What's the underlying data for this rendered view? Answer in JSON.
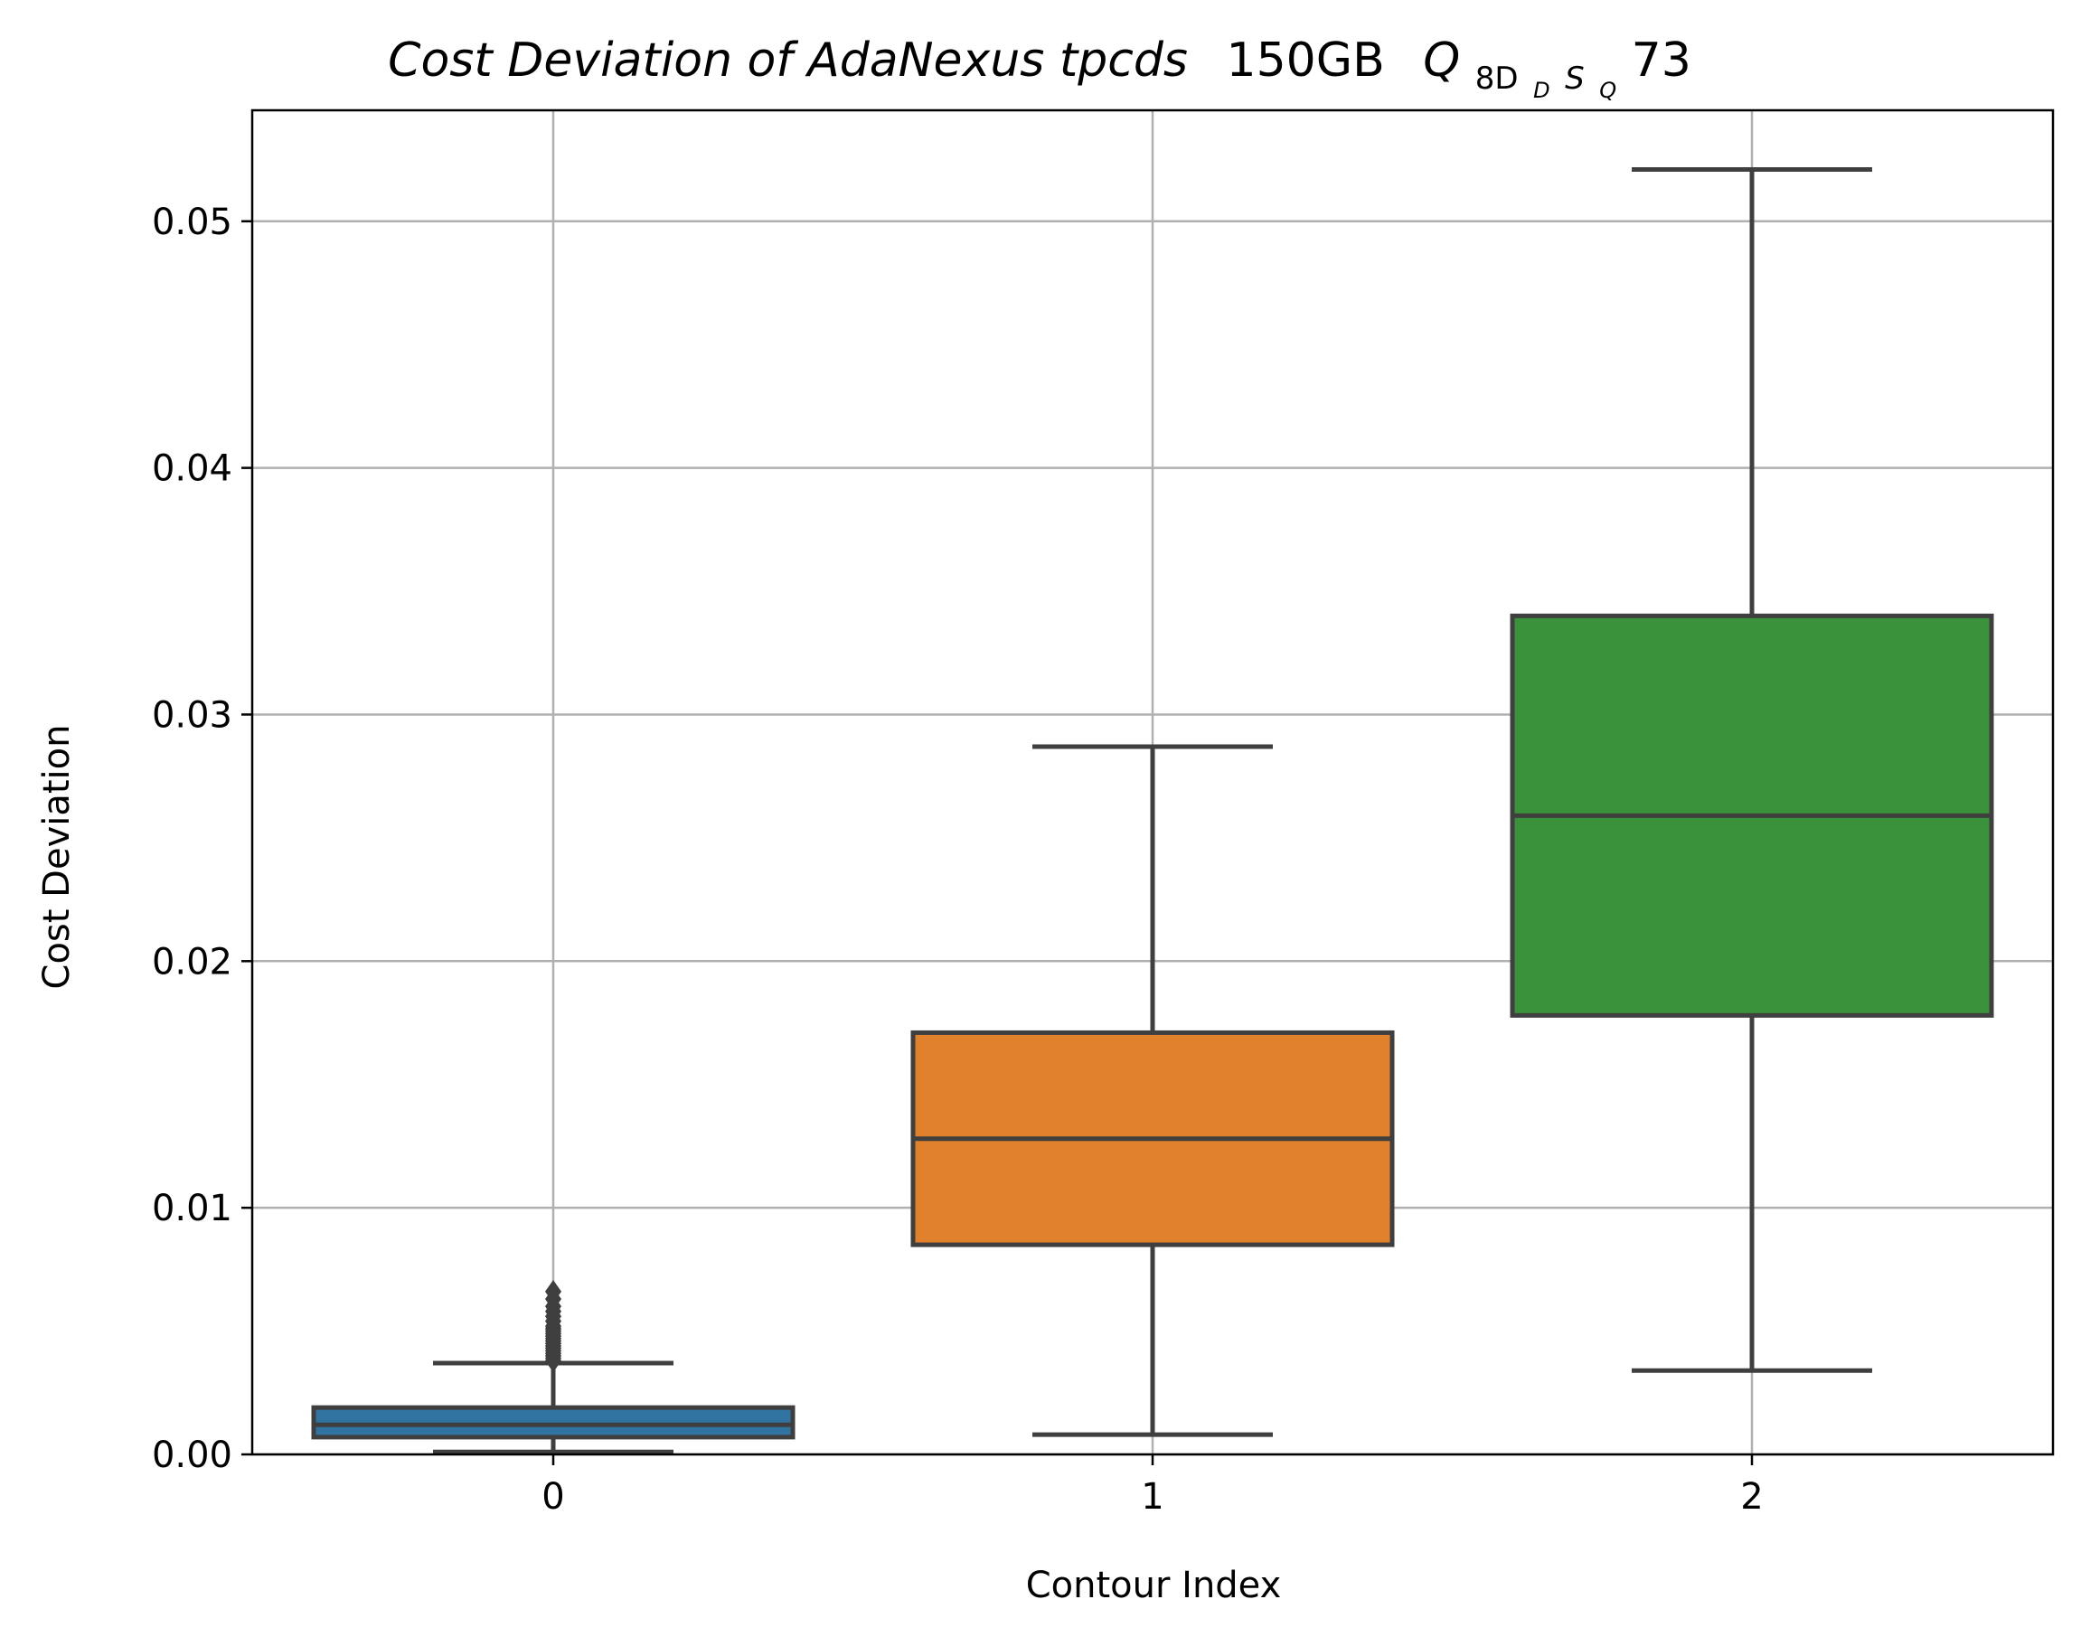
{
  "chart_data": {
    "type": "box",
    "title": {
      "italic_part": "Cost Deviation of AdaNexus tpcds",
      "plain_part": "150GB",
      "math_base": "Q",
      "math_subscript": "8D",
      "math_subsub_d": "D",
      "math_subscript_s": "S",
      "math_subsub_q": "Q",
      "math_suffix": "73"
    },
    "xlabel": "Contour Index",
    "ylabel": "Cost Deviation",
    "categories": [
      "0",
      "1",
      "2"
    ],
    "ylim": [
      0,
      0.0545
    ],
    "yticks": [
      0.0,
      0.01,
      0.02,
      0.03,
      0.04,
      0.05
    ],
    "ytick_labels": [
      "0.00",
      "0.01",
      "0.02",
      "0.03",
      "0.04",
      "0.05"
    ],
    "grid": true,
    "boxes": [
      {
        "category": "0",
        "whisker_low": 0.0001,
        "q1": 0.0007,
        "median": 0.0012,
        "q3": 0.0019,
        "whisker_high": 0.0037,
        "color": "#3274a1",
        "outliers": [
          0.0038,
          0.0039,
          0.004,
          0.0041,
          0.0042,
          0.0043,
          0.0044,
          0.0045,
          0.0046,
          0.0047,
          0.0048,
          0.0049,
          0.005,
          0.0051,
          0.0052,
          0.0054,
          0.0056,
          0.0058,
          0.006,
          0.0063,
          0.0066
        ]
      },
      {
        "category": "1",
        "whisker_low": 0.0008,
        "q1": 0.0085,
        "median": 0.0128,
        "q3": 0.0171,
        "whisker_high": 0.0287,
        "color": "#e1812c",
        "outliers": []
      },
      {
        "category": "2",
        "whisker_low": 0.0034,
        "q1": 0.0178,
        "median": 0.0259,
        "q3": 0.034,
        "whisker_high": 0.0521,
        "color": "#3a923a",
        "outliers": []
      }
    ],
    "colors": {
      "line": "#3f3f3f",
      "grid": "#b0b0b0",
      "axes": "#000000"
    }
  }
}
